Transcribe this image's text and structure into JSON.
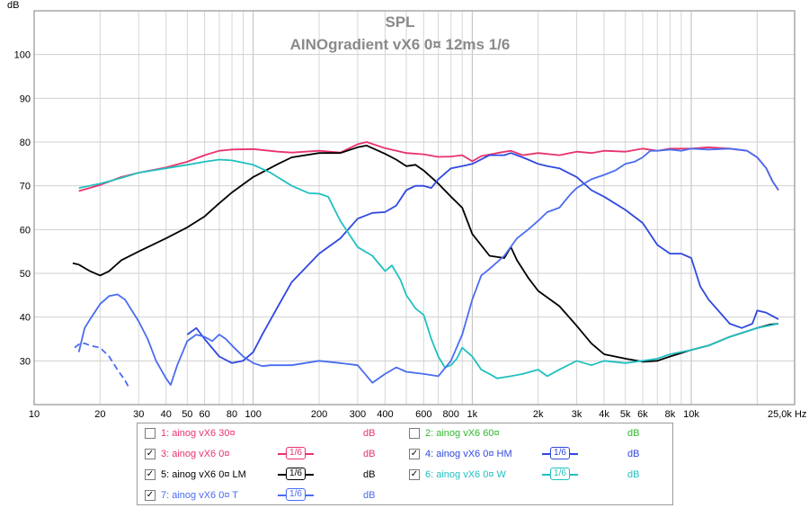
{
  "chart_data": {
    "type": "line",
    "title": "SPL",
    "subtitle": "AINOgradient vX6 0¤ 12ms 1/6",
    "ylabel": "dB",
    "xunit": "Hz",
    "xscale": "log",
    "xlim": [
      10,
      25000
    ],
    "ylim": [
      20,
      110
    ],
    "grid": true,
    "y_ticks": [
      30,
      40,
      50,
      60,
      70,
      80,
      90,
      100
    ],
    "x_ticks": [
      {
        "v": 10,
        "label": "10"
      },
      {
        "v": 20,
        "label": "20"
      },
      {
        "v": 30,
        "label": "30"
      },
      {
        "v": 40,
        "label": "40"
      },
      {
        "v": 50,
        "label": "50"
      },
      {
        "v": 60,
        "label": "60"
      },
      {
        "v": 80,
        "label": "80"
      },
      {
        "v": 100,
        "label": "100"
      },
      {
        "v": 200,
        "label": "200"
      },
      {
        "v": 300,
        "label": "300"
      },
      {
        "v": 400,
        "label": "400"
      },
      {
        "v": 600,
        "label": "600"
      },
      {
        "v": 800,
        "label": "800"
      },
      {
        "v": 1000,
        "label": "1k"
      },
      {
        "v": 2000,
        "label": "2k"
      },
      {
        "v": 3000,
        "label": "3k"
      },
      {
        "v": 4000,
        "label": "4k"
      },
      {
        "v": 5000,
        "label": "5k"
      },
      {
        "v": 6000,
        "label": "6k"
      },
      {
        "v": 8000,
        "label": "8k"
      },
      {
        "v": 10000,
        "label": "10k"
      },
      {
        "v": 25000,
        "label": "25,0k Hz"
      }
    ],
    "series": [
      {
        "name": "3: ainog vX6 0¤",
        "color": "#e8336b",
        "points": [
          [
            16,
            68.8
          ],
          [
            20,
            70.2
          ],
          [
            25,
            72
          ],
          [
            30,
            73
          ],
          [
            40,
            74.2
          ],
          [
            50,
            75.5
          ],
          [
            60,
            77
          ],
          [
            70,
            78
          ],
          [
            80,
            78.3
          ],
          [
            100,
            78.4
          ],
          [
            130,
            77.8
          ],
          [
            150,
            77.6
          ],
          [
            200,
            78
          ],
          [
            250,
            77.6
          ],
          [
            300,
            79.5
          ],
          [
            330,
            80
          ],
          [
            400,
            78.6
          ],
          [
            500,
            77.5
          ],
          [
            600,
            77.2
          ],
          [
            700,
            76.6
          ],
          [
            800,
            76.7
          ],
          [
            900,
            77
          ],
          [
            1000,
            75.6
          ],
          [
            1100,
            76.8
          ],
          [
            1300,
            77.5
          ],
          [
            1500,
            78
          ],
          [
            1700,
            77
          ],
          [
            2000,
            77.5
          ],
          [
            2500,
            77
          ],
          [
            3000,
            77.8
          ],
          [
            3500,
            77.5
          ],
          [
            4000,
            78
          ],
          [
            5000,
            77.8
          ],
          [
            6000,
            78.5
          ],
          [
            7000,
            78
          ],
          [
            8000,
            78.5
          ],
          [
            10000,
            78.5
          ],
          [
            12000,
            78.8
          ],
          [
            15000,
            78.5
          ],
          [
            18000,
            78
          ],
          [
            20000,
            76.5
          ],
          [
            22000,
            74
          ],
          [
            23500,
            71
          ],
          [
            25000,
            69
          ]
        ]
      },
      {
        "name": "5: ainog vX6 0¤ LM",
        "color": "#000000",
        "points": [
          [
            16,
            52
          ],
          [
            18,
            50.5
          ],
          [
            20,
            49.5
          ],
          [
            22,
            50.5
          ],
          [
            25,
            53
          ],
          [
            30,
            55
          ],
          [
            40,
            58
          ],
          [
            50,
            60.5
          ],
          [
            60,
            63
          ],
          [
            70,
            66
          ],
          [
            80,
            68.5
          ],
          [
            100,
            72
          ],
          [
            130,
            75
          ],
          [
            150,
            76.5
          ],
          [
            200,
            77.5
          ],
          [
            250,
            77.5
          ],
          [
            300,
            78.8
          ],
          [
            330,
            79.2
          ],
          [
            400,
            77.3
          ],
          [
            450,
            76
          ],
          [
            500,
            74.5
          ],
          [
            550,
            74.8
          ],
          [
            600,
            73.5
          ],
          [
            700,
            70.5
          ],
          [
            800,
            67.5
          ],
          [
            900,
            65
          ],
          [
            1000,
            59
          ],
          [
            1200,
            54
          ],
          [
            1400,
            53.5
          ],
          [
            1500,
            56
          ],
          [
            1600,
            53
          ],
          [
            1800,
            49
          ],
          [
            2000,
            46
          ],
          [
            2500,
            42.5
          ],
          [
            3000,
            38
          ],
          [
            3500,
            34
          ],
          [
            4000,
            31.5
          ],
          [
            5000,
            30.5
          ],
          [
            6000,
            29.8
          ],
          [
            7000,
            30
          ],
          [
            8000,
            31
          ],
          [
            10000,
            32.5
          ],
          [
            12000,
            33.5
          ],
          [
            15000,
            35.5
          ],
          [
            20000,
            37.5
          ],
          [
            23000,
            38.3
          ],
          [
            25000,
            38.5
          ]
        ]
      },
      {
        "name": "4: ainog vX6 0¤ HM",
        "color": "#3048e0",
        "points": [
          [
            50,
            36
          ],
          [
            55,
            37.5
          ],
          [
            60,
            35
          ],
          [
            70,
            31
          ],
          [
            80,
            29.5
          ],
          [
            90,
            30
          ],
          [
            100,
            32
          ],
          [
            110,
            36
          ],
          [
            130,
            42.5
          ],
          [
            150,
            48
          ],
          [
            200,
            54.5
          ],
          [
            250,
            58
          ],
          [
            300,
            62.5
          ],
          [
            350,
            63.8
          ],
          [
            400,
            64
          ],
          [
            450,
            65.5
          ],
          [
            500,
            69
          ],
          [
            550,
            70
          ],
          [
            600,
            70
          ],
          [
            650,
            69.5
          ],
          [
            700,
            71.5
          ],
          [
            800,
            74
          ],
          [
            900,
            74.5
          ],
          [
            1000,
            75
          ],
          [
            1200,
            77
          ],
          [
            1400,
            77
          ],
          [
            1500,
            77.5
          ],
          [
            1600,
            77
          ],
          [
            1800,
            76
          ],
          [
            2000,
            75
          ],
          [
            2200,
            74.5
          ],
          [
            2500,
            74
          ],
          [
            3000,
            72
          ],
          [
            3500,
            69
          ],
          [
            4000,
            67.5
          ],
          [
            5000,
            64.5
          ],
          [
            6000,
            61.5
          ],
          [
            7000,
            56.5
          ],
          [
            8000,
            54.5
          ],
          [
            9000,
            54.5
          ],
          [
            10000,
            53.5
          ],
          [
            11000,
            47
          ],
          [
            12000,
            44
          ],
          [
            13000,
            42
          ],
          [
            15000,
            38.5
          ],
          [
            17000,
            37.5
          ],
          [
            19000,
            38.5
          ],
          [
            20000,
            41.5
          ],
          [
            22000,
            41
          ],
          [
            25000,
            39.5
          ]
        ]
      },
      {
        "name": "6: ainog vX6 0¤ W",
        "color": "#20c0c0",
        "points": [
          [
            16,
            69.5
          ],
          [
            20,
            70.5
          ],
          [
            25,
            71.8
          ],
          [
            30,
            73
          ],
          [
            40,
            74
          ],
          [
            50,
            74.8
          ],
          [
            60,
            75.5
          ],
          [
            70,
            76
          ],
          [
            80,
            75.8
          ],
          [
            100,
            74.8
          ],
          [
            120,
            73
          ],
          [
            150,
            70
          ],
          [
            180,
            68.3
          ],
          [
            200,
            68.2
          ],
          [
            220,
            67.5
          ],
          [
            250,
            62
          ],
          [
            300,
            56
          ],
          [
            350,
            54
          ],
          [
            400,
            50.5
          ],
          [
            430,
            51.8
          ],
          [
            470,
            48.5
          ],
          [
            500,
            45
          ],
          [
            550,
            42
          ],
          [
            600,
            40.5
          ],
          [
            650,
            35
          ],
          [
            700,
            31
          ],
          [
            750,
            28.5
          ],
          [
            800,
            29
          ],
          [
            850,
            30.5
          ],
          [
            900,
            33
          ],
          [
            1000,
            31
          ],
          [
            1100,
            28
          ],
          [
            1200,
            27
          ],
          [
            1300,
            26
          ],
          [
            1500,
            26.5
          ],
          [
            1700,
            27
          ],
          [
            2000,
            28
          ],
          [
            2200,
            26.5
          ],
          [
            2500,
            28
          ],
          [
            3000,
            30
          ],
          [
            3500,
            29
          ],
          [
            4000,
            30
          ],
          [
            5000,
            29.5
          ],
          [
            6000,
            30
          ],
          [
            7000,
            30.5
          ],
          [
            8000,
            31.5
          ],
          [
            10000,
            32.5
          ],
          [
            12000,
            33.5
          ],
          [
            15000,
            35.5
          ],
          [
            20000,
            37.5
          ],
          [
            25000,
            38.5
          ]
        ]
      },
      {
        "name": "7: ainog vX6 0¤ T",
        "color": "#4a6cf0",
        "points": [
          [
            16,
            32
          ],
          [
            17,
            37.5
          ],
          [
            18,
            39.5
          ],
          [
            20,
            43
          ],
          [
            22,
            44.8
          ],
          [
            24,
            45.2
          ],
          [
            26,
            44
          ],
          [
            30,
            39
          ],
          [
            33,
            35
          ],
          [
            36,
            30
          ],
          [
            40,
            26
          ],
          [
            42,
            24.5
          ],
          [
            45,
            29
          ],
          [
            50,
            34.5
          ],
          [
            55,
            36
          ],
          [
            60,
            35.5
          ],
          [
            65,
            34.5
          ],
          [
            70,
            36
          ],
          [
            75,
            35
          ],
          [
            80,
            33.5
          ],
          [
            90,
            31
          ],
          [
            100,
            29.5
          ],
          [
            110,
            28.8
          ],
          [
            120,
            29
          ],
          [
            150,
            29
          ],
          [
            200,
            30
          ],
          [
            250,
            29.5
          ],
          [
            300,
            29
          ],
          [
            350,
            25
          ],
          [
            400,
            27
          ],
          [
            450,
            28.5
          ],
          [
            500,
            27.5
          ],
          [
            600,
            27
          ],
          [
            700,
            26.5
          ],
          [
            800,
            30
          ],
          [
            900,
            36
          ],
          [
            1000,
            44
          ],
          [
            1100,
            49.5
          ],
          [
            1200,
            51
          ],
          [
            1400,
            54
          ],
          [
            1600,
            58
          ],
          [
            1800,
            60
          ],
          [
            2000,
            62
          ],
          [
            2200,
            64
          ],
          [
            2500,
            65
          ],
          [
            2800,
            68
          ],
          [
            3000,
            69.5
          ],
          [
            3500,
            71.5
          ],
          [
            4000,
            72.5
          ],
          [
            4500,
            73.5
          ],
          [
            5000,
            75
          ],
          [
            5500,
            75.5
          ],
          [
            6000,
            76.5
          ],
          [
            6500,
            78
          ],
          [
            7000,
            78
          ],
          [
            8000,
            78.3
          ],
          [
            9000,
            78
          ],
          [
            10000,
            78.5
          ],
          [
            12000,
            78.3
          ],
          [
            15000,
            78.5
          ],
          [
            18000,
            78
          ],
          [
            20000,
            76.5
          ],
          [
            22000,
            74
          ],
          [
            23500,
            71
          ],
          [
            25000,
            69
          ]
        ]
      }
    ],
    "partial_starts": [
      {
        "series": "5: ainog vX6 0¤ LM",
        "points": [
          [
            15,
            52.3
          ],
          [
            16,
            52
          ]
        ]
      },
      {
        "series": "7: ainog vX6 0¤ T",
        "points": [
          [
            15.3,
            33
          ],
          [
            16.2,
            34
          ],
          [
            17,
            34
          ],
          [
            18,
            33.5
          ],
          [
            20,
            33
          ],
          [
            22,
            31
          ],
          [
            24,
            28
          ],
          [
            26,
            25.5
          ],
          [
            27,
            24
          ]
        ]
      }
    ]
  },
  "legend": {
    "rows": [
      {
        "checked": false,
        "label": "1: ainog vX6 30¤",
        "color": "#e8336b",
        "smoothing": "",
        "unit": "dB",
        "unit_color": "#e8336b"
      },
      {
        "checked": false,
        "label": "2: ainog vX6 60¤",
        "color": "#30b830",
        "smoothing": "",
        "unit": "dB",
        "unit_color": "#30b830"
      },
      {
        "checked": true,
        "label": "3: ainog vX6 0¤",
        "color": "#e8336b",
        "smoothing": "1/6",
        "unit": "dB",
        "unit_color": "#e8336b"
      },
      {
        "checked": true,
        "label": "4: ainog vX6 0¤ HM",
        "color": "#3048e0",
        "smoothing": "1/6",
        "unit": "dB",
        "unit_color": "#3048e0"
      },
      {
        "checked": true,
        "label": "5: ainog vX6 0¤ LM",
        "color": "#000000",
        "smoothing": "1/6",
        "unit": "dB",
        "unit_color": "#000000"
      },
      {
        "checked": true,
        "label": "6: ainog vX6 0¤ W",
        "color": "#20c0c0",
        "smoothing": "1/6",
        "unit": "dB",
        "unit_color": "#20c0c0"
      },
      {
        "checked": true,
        "label": "7: ainog vX6 0¤ T",
        "color": "#4a6cf0",
        "smoothing": "1/6",
        "unit": "dB",
        "unit_color": "#4a6cf0"
      }
    ]
  }
}
